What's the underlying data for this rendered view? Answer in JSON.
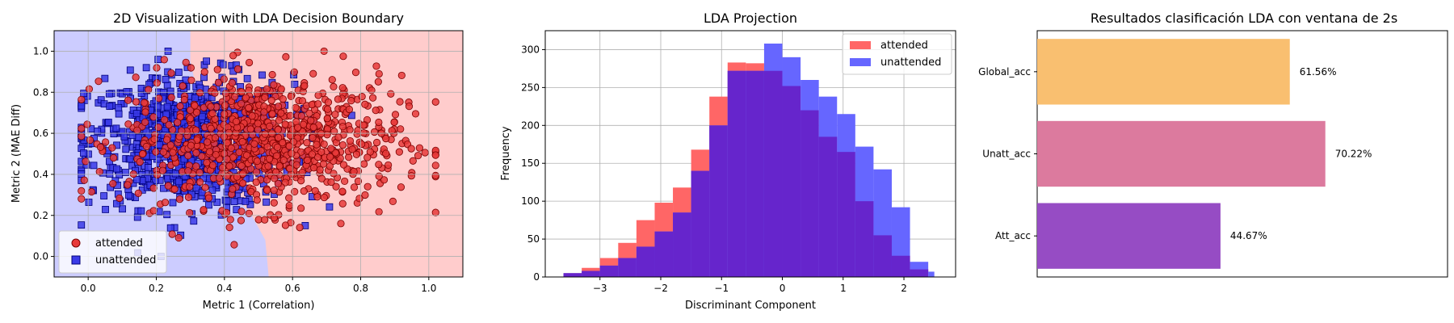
{
  "chart_data": [
    {
      "type": "scatter",
      "title": "2D Visualization with LDA Decision Boundary",
      "xlabel": "Metric 1 (Correlation)",
      "ylabel": "Metric 2 (MAE Diff)",
      "xlim": [
        -0.1,
        1.1
      ],
      "ylim": [
        -0.1,
        1.1
      ],
      "xticks": [
        "0.0",
        "0.2",
        "0.4",
        "0.6",
        "0.8",
        "1.0"
      ],
      "yticks": [
        "0.0",
        "0.2",
        "0.4",
        "0.6",
        "0.8",
        "1.0"
      ],
      "grid": true,
      "legend_position": "lower-left",
      "decision_boundary": [
        [
          0.3,
          1.1
        ],
        [
          0.3,
          0.95
        ],
        [
          0.32,
          0.8
        ],
        [
          0.36,
          0.62
        ],
        [
          0.38,
          0.45
        ],
        [
          0.43,
          0.3
        ],
        [
          0.48,
          0.2
        ],
        [
          0.52,
          0.08
        ],
        [
          0.53,
          -0.1
        ]
      ],
      "region_colors": {
        "unattended": "#ccccff",
        "attended": "#ffcccc"
      },
      "series": [
        {
          "name": "attended",
          "marker": "circle",
          "color": "#e83a3a",
          "edge": "#7a0000",
          "cluster": {
            "x_center": 0.52,
            "x_spread": 0.2,
            "y_center": 0.56,
            "y_spread": 0.16,
            "n": 900
          }
        },
        {
          "name": "unattended",
          "marker": "square",
          "color": "#3a3ae8",
          "edge": "#00007a",
          "cluster": {
            "x_center": 0.3,
            "x_spread": 0.15,
            "y_center": 0.56,
            "y_spread": 0.16,
            "n": 900
          }
        }
      ]
    },
    {
      "type": "histogram",
      "title": "LDA Projection",
      "xlabel": "Discriminant Component",
      "ylabel": "Frequency",
      "xlim": [
        -3.9,
        2.85
      ],
      "ylim": [
        0,
        325
      ],
      "xticks": [
        "−3",
        "−2",
        "−1",
        "0",
        "1",
        "2"
      ],
      "yticks": [
        "0",
        "50",
        "100",
        "150",
        "200",
        "250",
        "300"
      ],
      "grid": true,
      "legend_position": "top-right",
      "bin_edges": [
        -3.6,
        -3.3,
        -3.0,
        -2.7,
        -2.4,
        -2.1,
        -1.8,
        -1.5,
        -1.2,
        -0.9,
        -0.6,
        -0.3,
        0.0,
        0.3,
        0.6,
        0.9,
        1.2,
        1.5,
        1.8,
        2.1,
        2.4
      ],
      "series": [
        {
          "name": "attended",
          "color": "#ff6666",
          "values": [
            5,
            12,
            25,
            45,
            75,
            98,
            118,
            168,
            238,
            283,
            282,
            272,
            252,
            220,
            185,
            165,
            100,
            55,
            28,
            10
          ]
        },
        {
          "name": "unattended",
          "color": "#6666ff",
          "values": [
            5,
            8,
            15,
            25,
            40,
            60,
            85,
            140,
            200,
            272,
            272,
            308,
            290,
            260,
            238,
            215,
            172,
            142,
            92,
            20,
            7
          ]
        }
      ],
      "overlap_color": "#6625cc",
      "unattended_bin_edges": [
        -3.6,
        -3.3,
        -3.0,
        -2.7,
        -2.4,
        -2.1,
        -1.8,
        -1.5,
        -1.2,
        -0.9,
        -0.6,
        -0.3,
        0.0,
        0.3,
        0.6,
        0.9,
        1.2,
        1.5,
        1.8,
        2.1,
        2.4,
        2.5
      ]
    },
    {
      "type": "bar",
      "orientation": "horizontal",
      "title": "Resultados clasificación LDA con ventana de 2s",
      "categories": [
        "Global_acc",
        "Unatt_acc",
        "Att_acc"
      ],
      "values": [
        61.56,
        70.22,
        44.67
      ],
      "value_labels": [
        "61.56%",
        "70.22%",
        "44.67%"
      ],
      "colors": [
        "#f9bf70",
        "#dc7a9e",
        "#964cc4"
      ],
      "xlim": [
        0,
        100
      ]
    }
  ]
}
